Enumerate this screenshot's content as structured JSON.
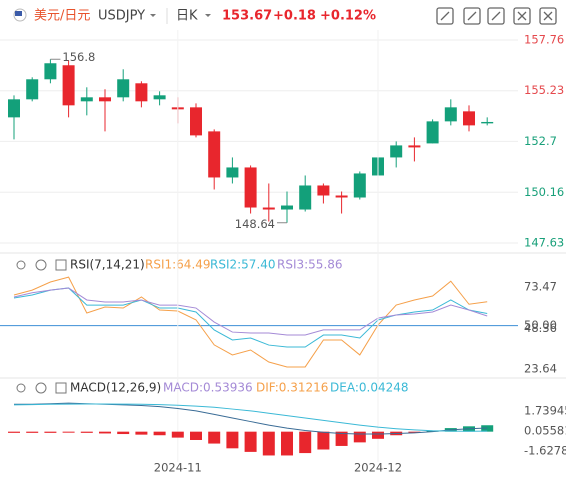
{
  "header": {
    "name": "美元/日元",
    "symbol": "USDJPY",
    "period": "日K",
    "price": 153.67,
    "change": "+0.18",
    "change_pct": "+0.12%"
  },
  "chart_data": [
    {
      "type": "candlestick",
      "open": [
        153.9,
        154.8,
        155.8,
        156.5,
        154.7,
        154.9,
        154.9,
        155.6,
        154.8,
        154.4,
        154.4,
        153.2,
        150.9,
        151.4,
        149.4,
        149.3,
        149.3,
        150.5,
        150.0,
        149.9,
        151.0,
        151.9,
        152.5,
        152.6,
        153.7,
        154.2,
        153.6
      ],
      "high": [
        155.0,
        155.9,
        156.8,
        156.75,
        155.4,
        155.3,
        156.3,
        155.7,
        155.2,
        154.9,
        154.6,
        153.3,
        151.9,
        151.5,
        150.6,
        150.2,
        151.0,
        150.6,
        150.2,
        151.2,
        152.0,
        152.7,
        152.9,
        153.8,
        154.8,
        154.5,
        153.9
      ],
      "low": [
        152.8,
        154.7,
        155.6,
        153.9,
        154.0,
        153.2,
        154.7,
        154.4,
        154.5,
        153.6,
        152.9,
        150.3,
        150.6,
        149.1,
        148.7,
        148.64,
        149.2,
        149.6,
        149.1,
        149.8,
        150.9,
        151.4,
        151.7,
        152.6,
        153.5,
        153.2,
        153.5
      ],
      "close": [
        154.8,
        155.8,
        156.6,
        154.5,
        154.9,
        154.7,
        155.8,
        154.7,
        155.0,
        154.3,
        153.0,
        150.9,
        151.4,
        149.4,
        149.3,
        149.5,
        150.5,
        150.0,
        149.9,
        151.1,
        151.9,
        152.5,
        152.4,
        153.7,
        154.4,
        153.5,
        153.67
      ],
      "up_color": "#13a07a",
      "down_color": "#e8262d",
      "axis_above_color": "#e5494d",
      "axis_below_color": "#19a07a",
      "ylim": [
        147.18,
        158.26
      ],
      "yticks": [
        157.76,
        155.23,
        152.7,
        150.16,
        147.63
      ],
      "grid": true
    },
    {
      "type": "line",
      "title": "RSI(7,14,21)",
      "series": [
        {
          "label": "RSI1:64.49",
          "color": "#f5a04a",
          "values": [
            68.6,
            71.6,
            76.5,
            79.5,
            57.7,
            61.3,
            60.7,
            67.4,
            59.5,
            58.9,
            53.5,
            38.3,
            32.2,
            35.2,
            27.9,
            24.9,
            24.9,
            41.3,
            41.3,
            32.2,
            50.4,
            62.5,
            65.6,
            68.0,
            77.0,
            63.0,
            64.49
          ]
        },
        {
          "label": "RSI2:57.40",
          "color": "#3bb9d6",
          "values": [
            66.8,
            68.6,
            71.6,
            72.9,
            62.5,
            62.5,
            62.5,
            65.6,
            60.7,
            60.7,
            58.3,
            47.4,
            41.3,
            42.5,
            38.2,
            37.0,
            37.0,
            44.3,
            44.3,
            42.5,
            53.4,
            56.5,
            58.3,
            59.5,
            65.6,
            59.5,
            57.4
          ]
        },
        {
          "label": "RSI3:55.86",
          "color": "#a48ad6",
          "values": [
            67.4,
            70.0,
            71.6,
            72.9,
            65.6,
            64.4,
            64.4,
            65.6,
            62.5,
            62.5,
            60.7,
            52.2,
            46.1,
            45.5,
            45.5,
            44.3,
            44.3,
            47.4,
            47.4,
            47.4,
            54.6,
            56.5,
            57.1,
            58.3,
            62.5,
            59.5,
            55.86
          ]
        }
      ],
      "ylim": [
        18.8,
        91.1
      ],
      "yticks": [
        73.47,
        {
          "value": 50,
          "label": "50.00"
        },
        48.36,
        23.64
      ],
      "reference_line": 50,
      "reference_color": "#3d8fd6"
    },
    {
      "type": "macd",
      "title": "MACD(12,26,9)",
      "histogram": {
        "label": "MACD:0.53936",
        "up_color": "#13a07a",
        "down_color": "#e8262d",
        "values": [
          -0.1,
          -0.1,
          -0.1,
          -0.05,
          -0.1,
          -0.15,
          -0.2,
          -0.25,
          -0.3,
          -0.5,
          -0.7,
          -1.0,
          -1.4,
          -1.7,
          -2.0,
          -2.0,
          -1.8,
          -1.5,
          -1.2,
          -0.9,
          -0.6,
          -0.3,
          -0.1,
          0.1,
          0.3,
          0.45,
          0.53936
        ]
      },
      "series": [
        {
          "label": "DIF:0.31216",
          "color": "#3a6c96",
          "values": [
            2.3,
            2.3,
            2.35,
            2.4,
            2.35,
            2.3,
            2.25,
            2.2,
            2.1,
            1.95,
            1.75,
            1.45,
            1.15,
            0.85,
            0.55,
            0.3,
            0.1,
            -0.05,
            -0.15,
            -0.2,
            -0.2,
            -0.15,
            -0.1,
            0.0,
            0.15,
            0.25,
            0.31216
          ]
        },
        {
          "label": "DEA:0.04248",
          "color": "#3bb9d6",
          "values": [
            2.25,
            2.27,
            2.3,
            2.32,
            2.33,
            2.33,
            2.32,
            2.3,
            2.27,
            2.22,
            2.15,
            2.05,
            1.9,
            1.75,
            1.55,
            1.35,
            1.15,
            0.95,
            0.75,
            0.55,
            0.38,
            0.25,
            0.15,
            0.08,
            0.05,
            0.04,
            0.04248
          ]
        }
      ],
      "ylim": [
        -2.55,
        2.83
      ],
      "yticks": [
        1.73945,
        0.05581,
        -1.62783
      ],
      "xticks": [
        {
          "value": 9,
          "label": "2024-11"
        },
        {
          "value": 20,
          "label": "2024-12"
        }
      ]
    }
  ]
}
